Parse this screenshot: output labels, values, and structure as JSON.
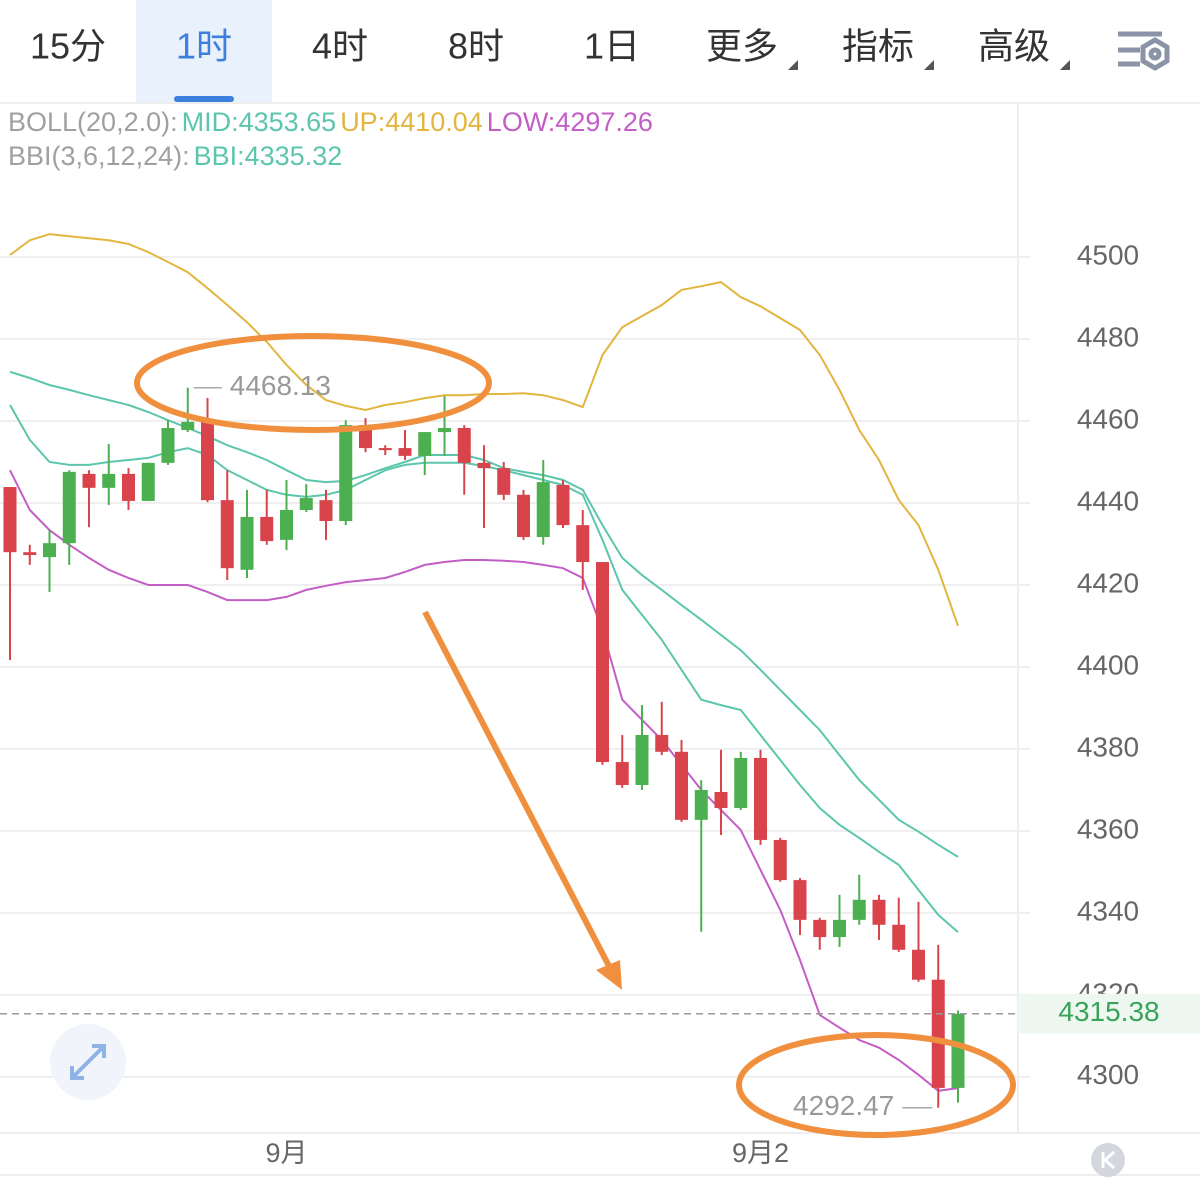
{
  "tabs": [
    "15分",
    "1时",
    "4时",
    "8时",
    "1日",
    "更多",
    "指标",
    "高级"
  ],
  "active_tab": 1,
  "chart_data": {
    "type": "candlestick",
    "legend_groups": [
      "BOLL(20,2.0):",
      "BBI(3,6,12,24):"
    ],
    "categories": [
      null,
      null,
      null,
      null,
      null,
      null,
      null,
      null,
      null,
      null,
      null,
      null,
      null,
      null,
      "9月",
      null,
      null,
      null,
      null,
      null,
      null,
      null,
      null,
      null,
      null,
      null,
      null,
      null,
      null,
      null,
      null,
      null,
      null,
      null,
      null,
      null,
      null,
      null,
      "9月2",
      null,
      null,
      null,
      null,
      null,
      null,
      null,
      null,
      null,
      null
    ],
    "open": [
      4443.9,
      4428.0,
      4426.8,
      4430.2,
      4447.1,
      4443.7,
      4447.1,
      4440.5,
      4449.8,
      4457.8,
      4459.8,
      4440.7,
      4423.7,
      4436.6,
      4431.0,
      4438.3,
      4440.7,
      4435.6,
      4459.0,
      4453.4,
      4453.4,
      4451.5,
      4457.3,
      4458.3,
      4449.8,
      4448.5,
      4442.0,
      4431.7,
      4444.4,
      4434.6,
      4425.6,
      4376.8,
      4371.2,
      4383.4,
      4379.3,
      4362.7,
      4369.5,
      4365.6,
      4377.8,
      4357.8,
      4348.0,
      4338.3,
      4334.1,
      4338.3,
      4343.2,
      4337.1,
      4331.0,
      4323.7,
      4297.3
    ],
    "high": [
      4443.9,
      4429.8,
      4433.4,
      4448.0,
      4448.0,
      4454.4,
      4448.5,
      4449.8,
      4460.2,
      4468.13,
      4465.6,
      4448.0,
      4443.2,
      4443.2,
      4445.6,
      4444.6,
      4443.2,
      4460.2,
      4460.7,
      4454.1,
      4457.8,
      4457.3,
      4466.1,
      4459.0,
      4454.1,
      4450.0,
      4443.2,
      4450.5,
      4445.6,
      4438.3,
      4425.6,
      4383.4,
      4390.7,
      4391.5,
      4382.2,
      4372.4,
      4379.8,
      4379.3,
      4379.8,
      4358.3,
      4348.5,
      4338.8,
      4344.4,
      4349.3,
      4344.4,
      4343.7,
      4342.7,
      4332.2,
      4316.2
    ],
    "low": [
      4401.7,
      4424.9,
      4418.3,
      4424.9,
      4434.1,
      4439.5,
      4438.3,
      4440.5,
      4449.3,
      4457.3,
      4440.2,
      4421.2,
      4421.7,
      4429.8,
      4428.5,
      4437.8,
      4431.0,
      4434.6,
      4452.4,
      4451.7,
      4450.5,
      4446.8,
      4451.5,
      4442.0,
      4433.9,
      4440.7,
      4431.0,
      4429.8,
      4433.9,
      4418.8,
      4376.1,
      4370.5,
      4370.0,
      4378.5,
      4362.2,
      4335.4,
      4359.0,
      4365.1,
      4356.6,
      4347.6,
      4334.6,
      4331.0,
      4331.7,
      4337.1,
      4333.4,
      4330.5,
      4323.2,
      4292.47,
      4293.7
    ],
    "close": [
      4428.0,
      4427.3,
      4430.2,
      4447.6,
      4443.7,
      4447.1,
      4440.5,
      4449.8,
      4458.3,
      4459.8,
      4440.7,
      4424.1,
      4436.6,
      4430.7,
      4438.3,
      4441.2,
      4435.6,
      4459.0,
      4453.4,
      4452.9,
      4451.5,
      4457.3,
      4458.3,
      4449.8,
      4448.5,
      4442.0,
      4431.7,
      4445.1,
      4434.6,
      4425.6,
      4376.8,
      4371.2,
      4383.4,
      4379.3,
      4362.7,
      4370.0,
      4365.6,
      4377.8,
      4357.8,
      4348.0,
      4338.3,
      4334.1,
      4338.3,
      4343.2,
      4337.1,
      4331.0,
      4323.7,
      4297.3,
      4315.38
    ],
    "up_color": "#4caf50",
    "down_color": "#d9434b",
    "series": [
      {
        "name": "MID:4353.65",
        "color": "#5cc6ad",
        "values": [
          4472.0,
          4470.5,
          4468.8,
          4467.6,
          4466.3,
          4465.1,
          4463.9,
          4462.2,
          4460.2,
          4458.3,
          4456.3,
          4454.1,
          4452.4,
          4450.5,
          4448.0,
          4445.6,
          4445.1,
          4445.4,
          4446.8,
          4448.5,
          4450.0,
          4451.7,
          4451.7,
          4451.7,
          4450.5,
          4448.5,
          4447.6,
          4446.8,
          4445.6,
          4443.2,
          4434.6,
          4426.6,
          4422.4,
          4418.8,
          4415.1,
          4411.5,
          4407.8,
          4404.1,
          4399.3,
          4394.4,
          4389.5,
          4384.6,
          4378.5,
          4372.4,
          4367.6,
          4362.7,
          4359.8,
          4356.6,
          4353.65
        ]
      },
      {
        "name": "UP:4410.04",
        "color": "#e2b53e",
        "values": [
          4500.5,
          4504.1,
          4505.6,
          4505.1,
          4504.6,
          4504.1,
          4503.2,
          4501.2,
          4498.8,
          4496.3,
          4492.4,
          4488.3,
          4484.1,
          4479.3,
          4473.7,
          4468.8,
          4465.1,
          4463.7,
          4462.7,
          4463.9,
          4464.6,
          4465.6,
          4466.3,
          4466.3,
          4466.6,
          4466.6,
          4466.8,
          4466.3,
          4465.1,
          4463.4,
          4476.1,
          4482.9,
          4485.6,
          4488.3,
          4492.0,
          4492.9,
          4493.9,
          4490.2,
          4488.0,
          4485.1,
          4482.2,
          4476.1,
          4467.6,
          4457.8,
          4450.5,
          4440.7,
          4434.6,
          4423.7,
          4410.04
        ]
      },
      {
        "name": "LOW:4297.26",
        "color": "#c45ec7",
        "values": [
          4448.0,
          4438.3,
          4433.4,
          4429.8,
          4426.6,
          4423.7,
          4421.7,
          4420.0,
          4420.0,
          4420.0,
          4418.3,
          4416.3,
          4416.3,
          4416.3,
          4417.1,
          4418.8,
          4419.8,
          4420.7,
          4421.2,
          4421.7,
          4423.2,
          4424.9,
          4425.6,
          4426.1,
          4426.1,
          4425.9,
          4425.6,
          4424.9,
          4424.1,
          4421.7,
          4409.0,
          4392.0,
          4387.1,
          4382.2,
          4376.1,
          4370.0,
          4365.1,
          4360.2,
          4350.5,
          4340.7,
          4328.5,
          4315.1,
          4312.0,
          4309.0,
          4307.1,
          4304.1,
          4300.5,
          4296.6,
          4297.26
        ]
      },
      {
        "name": "BBI:4335.32",
        "color": "#5cc6ad",
        "values": [
          4463.9,
          4455.4,
          4450.0,
          4449.3,
          4449.3,
          4450.0,
          4450.5,
          4451.0,
          4452.4,
          4453.4,
          4451.7,
          4448.0,
          4445.6,
          4443.2,
          4442.0,
          4441.5,
          4442.0,
          4443.2,
          4445.6,
          4448.0,
          4449.3,
          4449.8,
          4449.8,
          4449.8,
          4449.0,
          4448.0,
          4446.8,
          4445.6,
          4444.4,
          4442.0,
          4431.0,
          4418.8,
          4412.7,
          4406.6,
          4399.3,
          4392.0,
          4390.7,
          4389.5,
          4383.4,
          4377.3,
          4371.2,
          4365.6,
          4361.5,
          4358.3,
          4354.9,
          4351.7,
          4345.6,
          4339.5,
          4335.32
        ]
      }
    ],
    "ylim": [
      4286.3,
      4537.1
    ],
    "yticks": [
      4300,
      4320,
      4340,
      4360,
      4380,
      4400,
      4420,
      4440,
      4460,
      4480,
      4500
    ],
    "grid": true
  }
}
